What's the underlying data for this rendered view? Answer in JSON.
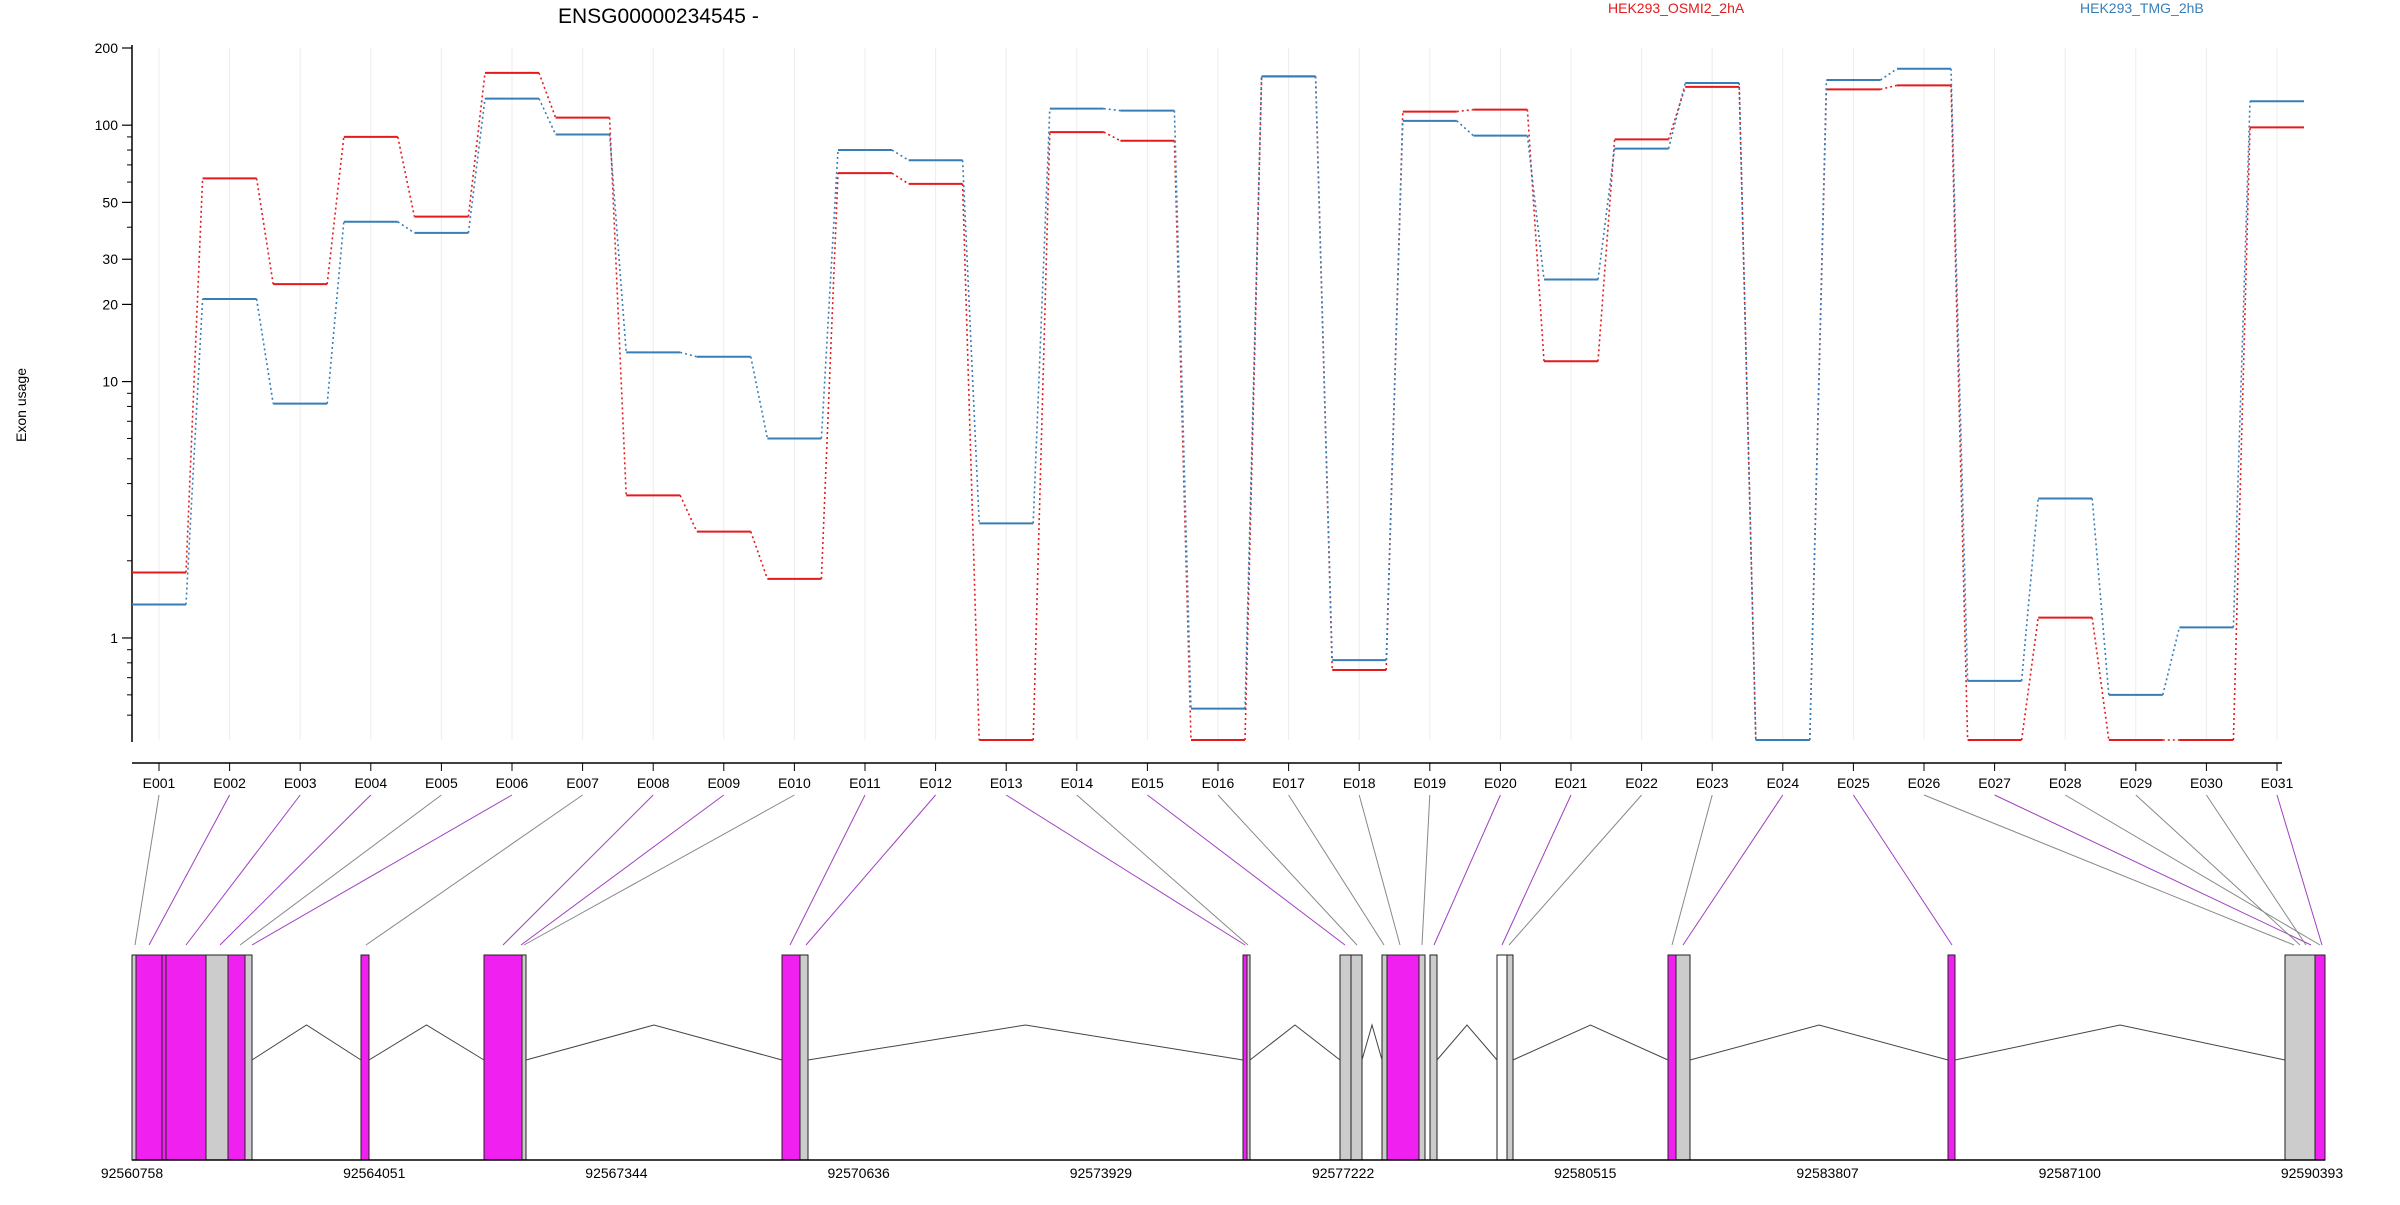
{
  "chart_data": {
    "type": "line",
    "title": "ENSG00000234545 -",
    "ylabel": "Exon usage",
    "xlabel": "",
    "y_scale": "log",
    "ylim": [
      0.4,
      200
    ],
    "y_ticks": [
      1,
      10,
      20,
      30,
      50,
      100,
      200
    ],
    "y_tick_labels": [
      "1",
      "10",
      "20",
      "30",
      "50",
      "100",
      "200"
    ],
    "grid": "vertical",
    "legend_position": "top",
    "categories": [
      "E001",
      "E002",
      "E003",
      "E004",
      "E005",
      "E006",
      "E007",
      "E008",
      "E009",
      "E010",
      "E011",
      "E012",
      "E013",
      "E014",
      "E015",
      "E016",
      "E017",
      "E018",
      "E019",
      "E020",
      "E021",
      "E022",
      "E023",
      "E024",
      "E025",
      "E026",
      "E027",
      "E028",
      "E029",
      "E030",
      "E031"
    ],
    "series": [
      {
        "name": "HEK293_OSMI2_2hA",
        "color": "#e41a1c",
        "values": [
          1.8,
          62,
          24,
          90,
          44,
          160,
          107,
          3.6,
          2.6,
          1.7,
          65,
          59,
          0.4,
          94,
          87,
          0.4,
          155,
          0.75,
          113,
          115,
          12,
          88,
          141,
          0.4,
          138,
          143,
          0.4,
          1.2,
          0.4,
          0.4,
          98
        ]
      },
      {
        "name": "HEK293_TMG_2hB",
        "color": "#377eb8",
        "values": [
          1.35,
          21,
          8.2,
          42,
          38,
          127,
          92,
          13,
          12.5,
          6,
          80,
          73,
          2.8,
          116,
          114,
          0.53,
          155,
          0.82,
          104,
          91,
          25,
          81,
          146,
          0.4,
          150,
          166,
          0.68,
          3.5,
          0.6,
          1.1,
          124
        ]
      }
    ],
    "gene_model": {
      "genomic_tick_labels": [
        "92560758",
        "92564051",
        "92567344",
        "92570636",
        "92573929",
        "92577222",
        "92580515",
        "92583807",
        "92587100",
        "92590393"
      ],
      "exon_fill_colors": {
        "significant": "#f020f0",
        "other": "#cccccc",
        "empty": "#ffffff"
      }
    }
  }
}
